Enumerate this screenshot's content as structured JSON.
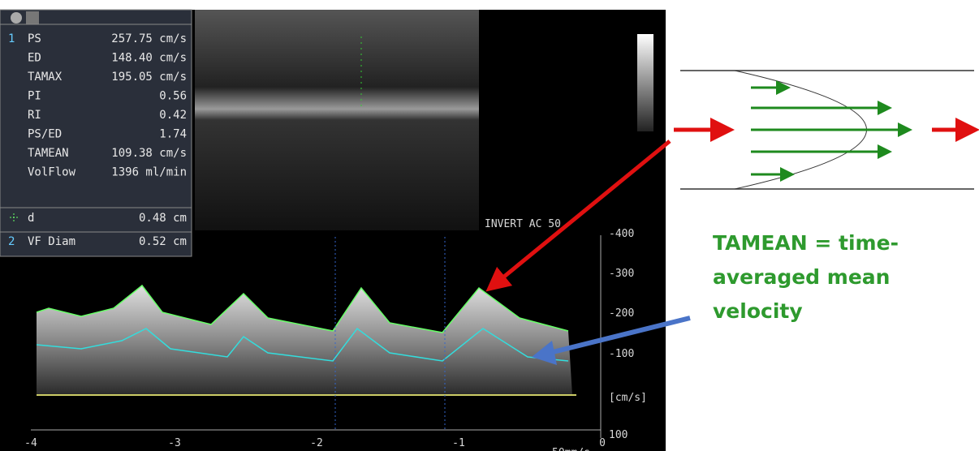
{
  "panel": {
    "rows": [
      {
        "index": "1",
        "label": "PS",
        "value": "257.75 cm/s"
      },
      {
        "label": "ED",
        "value": "148.40 cm/s"
      },
      {
        "label": "TAMAX",
        "value": "195.05 cm/s"
      },
      {
        "label": "PI",
        "value": "0.56"
      },
      {
        "label": "RI",
        "value": "0.42"
      },
      {
        "label": "PS/ED",
        "value": "1.74"
      },
      {
        "label": "TAMEAN",
        "value": "109.38 cm/s"
      },
      {
        "label": "VolFlow",
        "value": "1396 ml/min"
      }
    ],
    "distance": {
      "label": "d",
      "value": "0.48 cm"
    },
    "diameter": {
      "index": "2",
      "label": "VF Diam",
      "value": "0.52 cm"
    }
  },
  "scale": {
    "status": "INVERT AC 50",
    "velocity_ticks": [
      "-400",
      "-300",
      "-200",
      "-100",
      "[cm/s]",
      "100"
    ],
    "time_ticks": [
      "-4",
      "-3",
      "-2",
      "-1",
      "0"
    ],
    "sweep": "50mm/s"
  },
  "annotation": {
    "lines": [
      "TAMEAN = time-",
      "averaged mean",
      "velocity"
    ]
  }
}
